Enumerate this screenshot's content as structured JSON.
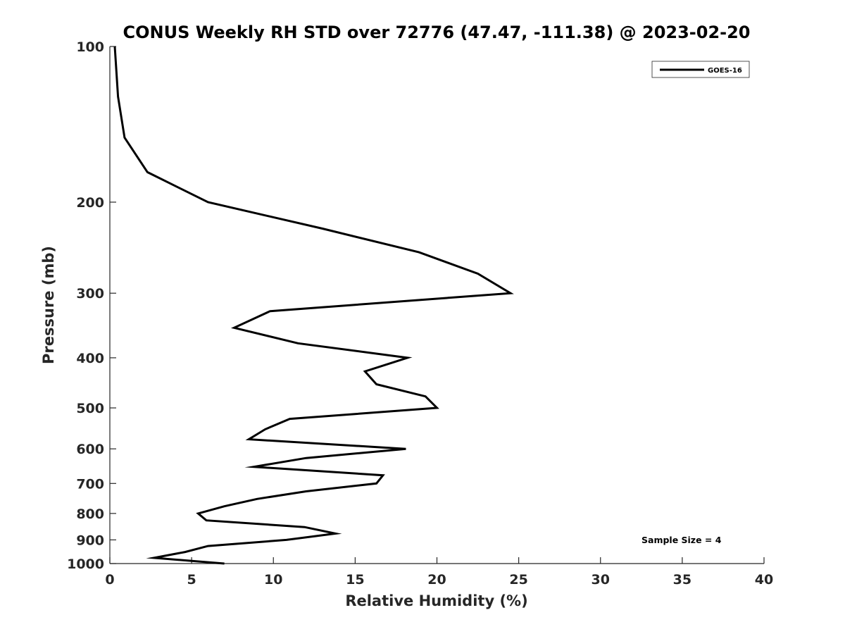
{
  "chart_data": {
    "type": "line",
    "title": "CONUS Weekly RH STD over 72776 (47.47, -111.38) @ 2023-02-20",
    "xlabel": "Relative Humidity (%)",
    "ylabel": "Pressure (mb)",
    "xlim": [
      0,
      40
    ],
    "ylim": [
      100,
      1000
    ],
    "y_scale": "log",
    "y_reversed": true,
    "grid": false,
    "legend_position": "top-right",
    "x_ticks": [
      0,
      5,
      10,
      15,
      20,
      25,
      30,
      35,
      40
    ],
    "x_tick_labels": [
      "0",
      "5",
      "10",
      "15",
      "20",
      "25",
      "30",
      "35",
      "40"
    ],
    "y_ticks": [
      100,
      200,
      300,
      400,
      500,
      600,
      700,
      800,
      900,
      1000
    ],
    "y_tick_labels": [
      "100",
      "200",
      "300",
      "400",
      "500",
      "600",
      "700",
      "800",
      "900",
      "1000"
    ],
    "series": [
      {
        "name": "GOES-16",
        "color": "#000000",
        "points": [
          {
            "x": 0.3,
            "y": 100
          },
          {
            "x": 0.5,
            "y": 125
          },
          {
            "x": 0.9,
            "y": 150
          },
          {
            "x": 2.3,
            "y": 175
          },
          {
            "x": 6.0,
            "y": 200
          },
          {
            "x": 13.0,
            "y": 225
          },
          {
            "x": 18.9,
            "y": 250
          },
          {
            "x": 22.5,
            "y": 275
          },
          {
            "x": 24.5,
            "y": 300
          },
          {
            "x": 9.8,
            "y": 325
          },
          {
            "x": 7.6,
            "y": 350
          },
          {
            "x": 11.5,
            "y": 375
          },
          {
            "x": 18.2,
            "y": 400
          },
          {
            "x": 15.6,
            "y": 425
          },
          {
            "x": 16.3,
            "y": 450
          },
          {
            "x": 19.3,
            "y": 475
          },
          {
            "x": 20.0,
            "y": 500
          },
          {
            "x": 11.0,
            "y": 525
          },
          {
            "x": 9.5,
            "y": 550
          },
          {
            "x": 8.5,
            "y": 575
          },
          {
            "x": 18.1,
            "y": 600
          },
          {
            "x": 12.0,
            "y": 625
          },
          {
            "x": 8.8,
            "y": 650
          },
          {
            "x": 16.7,
            "y": 675
          },
          {
            "x": 16.3,
            "y": 700
          },
          {
            "x": 12.0,
            "y": 725
          },
          {
            "x": 9.0,
            "y": 750
          },
          {
            "x": 7.0,
            "y": 775
          },
          {
            "x": 5.4,
            "y": 800
          },
          {
            "x": 5.9,
            "y": 825
          },
          {
            "x": 11.9,
            "y": 850
          },
          {
            "x": 13.8,
            "y": 875
          },
          {
            "x": 10.8,
            "y": 900
          },
          {
            "x": 6.0,
            "y": 925
          },
          {
            "x": 4.6,
            "y": 950
          },
          {
            "x": 2.7,
            "y": 975
          },
          {
            "x": 7.0,
            "y": 1000
          }
        ]
      }
    ],
    "annotations": [
      "Sample Size = 4"
    ]
  }
}
